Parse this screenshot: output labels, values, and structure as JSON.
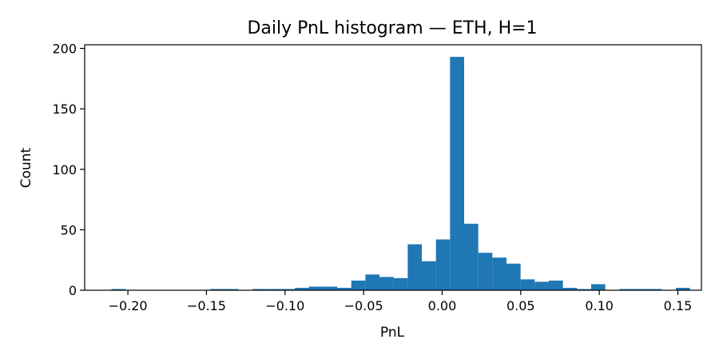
{
  "chart_data": {
    "type": "bar",
    "title": "Daily PnL histogram — ETH, H=1",
    "xlabel": "PnL",
    "ylabel": "Count",
    "xlim": [
      -0.2275,
      0.165
    ],
    "ylim": [
      0,
      203
    ],
    "grid": false,
    "bar_color": "#1f77b4",
    "x_ticks": [
      -0.2,
      -0.15,
      -0.1,
      -0.05,
      0.0,
      0.05,
      0.1,
      0.15
    ],
    "x_tick_labels": [
      "−0.20",
      "−0.15",
      "−0.10",
      "−0.05",
      "0.00",
      "0.05",
      "0.10",
      "0.15"
    ],
    "y_ticks": [
      0,
      50,
      100,
      150,
      200
    ],
    "y_tick_labels": [
      "0",
      "50",
      "100",
      "150",
      "200"
    ],
    "bin_start": -0.2105,
    "bin_width": 0.00898,
    "counts": [
      1,
      0,
      0,
      0,
      0,
      0,
      0,
      1,
      1,
      0,
      1,
      1,
      1,
      2,
      3,
      3,
      2,
      8,
      13,
      11,
      10,
      38,
      24,
      42,
      193,
      55,
      31,
      27,
      22,
      9,
      7,
      8,
      2,
      1,
      5,
      0,
      1,
      1,
      1,
      0,
      2
    ]
  }
}
